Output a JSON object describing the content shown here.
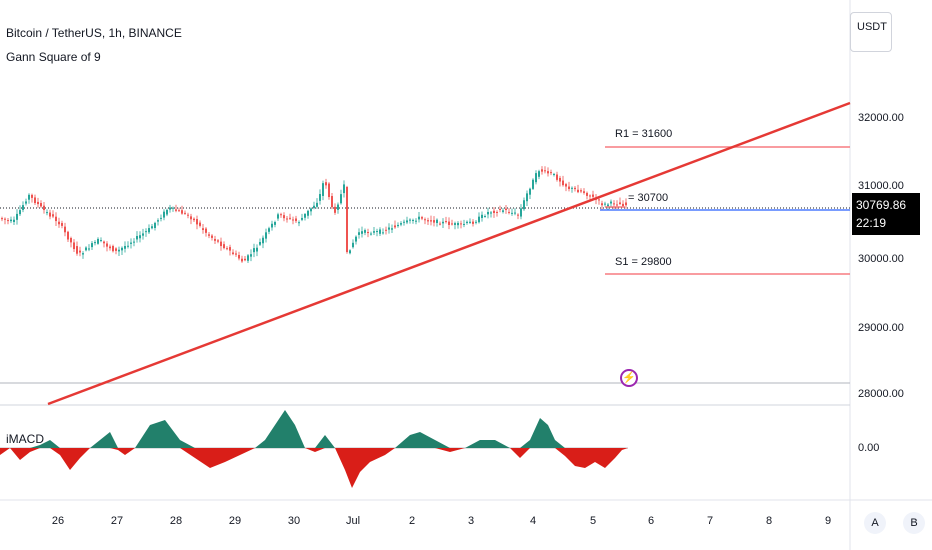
{
  "header": {
    "symbol_title": "Bitcoin / TetherUS, 1h, BINANCE",
    "indicator_title": "Gann Square of 9"
  },
  "currency": "USDT",
  "price_axis": {
    "labels": [
      "32000.00",
      "31000.00",
      "30000.00",
      "29000.00",
      "28000.00"
    ]
  },
  "last_price": {
    "value": "30769.86",
    "countdown": "22:19"
  },
  "gann_levels": [
    {
      "label": "R1 = 31600",
      "value": 31600
    },
    {
      "label": "= 30700",
      "value": 30700
    },
    {
      "label": "S1 = 29800",
      "value": 29800
    }
  ],
  "macd_pane": {
    "title": "iMACD",
    "zero_label": "0.00"
  },
  "time_axis": {
    "labels": [
      "26",
      "27",
      "28",
      "29",
      "30",
      "Jul",
      "2",
      "3",
      "4",
      "5",
      "6",
      "7",
      "8",
      "9"
    ]
  },
  "buttons": {
    "auto_scale": "A",
    "log_scale": "B"
  },
  "colors": {
    "trendline": "#e53935",
    "gann_level": "#f77c80",
    "candle_up": "#26a69a",
    "candle_down": "#ef5350",
    "macd_positive": "#22806b",
    "macd_negative": "#d91e18",
    "current_price_line": "#2962ff"
  }
}
